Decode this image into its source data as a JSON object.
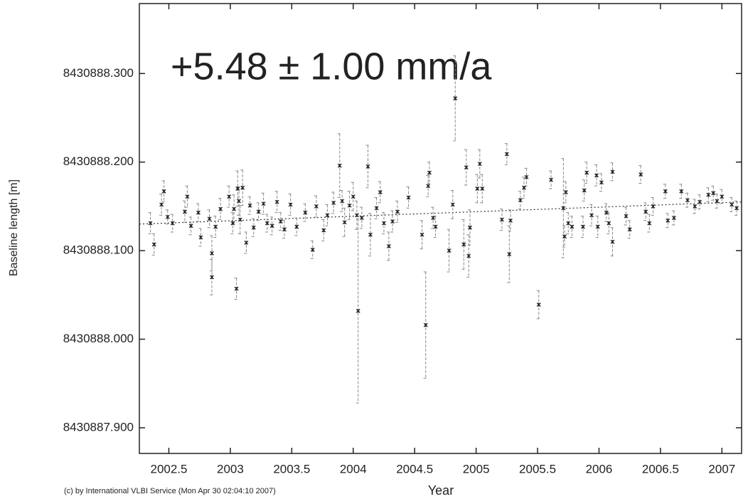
{
  "chart_data": {
    "type": "scatter",
    "annotation": "+5.48 ± 1.00 mm/a",
    "annotation_color": "#118811",
    "xlabel": "Year",
    "ylabel": "Baseline length [m]",
    "footnote": "(c) by International VLBI Service (Mon Apr 30 02:04:10 2007)",
    "xlim": [
      2002.26,
      2007.16
    ],
    "ylim": [
      8430887.871,
      8430888.379
    ],
    "xticks": [
      2002.5,
      2003,
      2003.5,
      2004,
      2004.5,
      2005,
      2005.5,
      2006,
      2006.5,
      2007
    ],
    "yticks": [
      {
        "value": 8430887.9,
        "label": "8430887.900"
      },
      {
        "value": 8430888.0,
        "label": "8430888.000"
      },
      {
        "value": 8430888.1,
        "label": "8430888.100"
      },
      {
        "value": 8430888.2,
        "label": "8430888.200"
      },
      {
        "value": 8430888.3,
        "label": "8430888.300"
      }
    ],
    "grid": false,
    "series": [
      {
        "color": "#222222",
        "error_color": "#8a8a8a",
        "x": [
          2002.35,
          2002.38,
          2002.44,
          2002.46,
          2002.49,
          2002.53,
          2002.63,
          2002.65,
          2002.68,
          2002.74,
          2002.76,
          2002.83,
          2002.85,
          2002.85,
          2002.88,
          2002.92,
          2002.99,
          2003.02,
          2003.03,
          2003.05,
          2003.06,
          2003.07,
          2003.08,
          2003.1,
          2003.13,
          2003.16,
          2003.19,
          2003.23,
          2003.27,
          2003.3,
          2003.34,
          2003.38,
          2003.41,
          2003.44,
          2003.49,
          2003.54,
          2003.61,
          2003.67,
          2003.7,
          2003.76,
          2003.79,
          2003.84,
          2003.89,
          2003.91,
          2003.93,
          2003.97,
          2004.0,
          2004.03,
          2004.04,
          2004.07,
          2004.12,
          2004.14,
          2004.19,
          2004.22,
          2004.25,
          2004.29,
          2004.32,
          2004.36,
          2004.45,
          2004.56,
          2004.59,
          2004.61,
          2004.62,
          2004.65,
          2004.67,
          2004.78,
          2004.81,
          2004.83,
          2004.9,
          2004.92,
          2004.94,
          2004.95,
          2005.01,
          2005.03,
          2005.05,
          2005.21,
          2005.25,
          2005.27,
          2005.28,
          2005.36,
          2005.39,
          2005.41,
          2005.51,
          2005.61,
          2005.71,
          2005.72,
          2005.73,
          2005.75,
          2005.78,
          2005.87,
          2005.88,
          2005.9,
          2005.94,
          2005.98,
          2005.99,
          2006.02,
          2006.06,
          2006.08,
          2006.11,
          2006.11,
          2006.22,
          2006.25,
          2006.34,
          2006.38,
          2006.41,
          2006.44,
          2006.54,
          2006.56,
          2006.61,
          2006.67,
          2006.72,
          2006.78,
          2006.82,
          2006.89,
          2006.93,
          2006.96,
          2007.0,
          2007.08,
          2007.12
        ],
        "values": [
          8430888.131,
          8430888.107,
          8430888.152,
          8430888.167,
          8430888.138,
          8430888.131,
          8430888.144,
          8430888.161,
          8430888.128,
          8430888.143,
          8430888.115,
          8430888.136,
          8430888.097,
          8430888.07,
          8430888.127,
          8430888.147,
          8430888.161,
          8430888.131,
          8430888.147,
          8430888.057,
          8430888.17,
          8430888.156,
          8430888.135,
          8430888.171,
          8430888.109,
          8430888.151,
          8430888.126,
          8430888.144,
          8430888.153,
          8430888.131,
          8430888.128,
          8430888.155,
          8430888.133,
          8430888.124,
          8430888.152,
          8430888.127,
          8430888.143,
          8430888.101,
          8430888.15,
          8430888.123,
          8430888.14,
          8430888.154,
          8430888.196,
          8430888.156,
          8430888.132,
          8430888.151,
          8430888.161,
          8430888.14,
          8430888.032,
          8430888.137,
          8430888.195,
          8430888.118,
          8430888.148,
          8430888.166,
          8430888.131,
          8430888.105,
          8430888.133,
          8430888.144,
          8430888.16,
          8430888.118,
          8430888.016,
          8430888.173,
          8430888.188,
          8430888.137,
          8430888.127,
          8430888.1,
          8430888.152,
          8430888.272,
          8430888.107,
          8430888.194,
          8430888.094,
          8430888.126,
          8430888.17,
          8430888.198,
          8430888.17,
          8430888.135,
          8430888.209,
          8430888.096,
          8430888.134,
          8430888.157,
          8430888.171,
          8430888.183,
          8430888.039,
          8430888.18,
          8430888.148,
          8430888.116,
          8430888.166,
          8430888.131,
          8430888.127,
          8430888.127,
          8430888.168,
          8430888.188,
          8430888.14,
          8430888.185,
          8430888.127,
          8430888.177,
          8430888.143,
          8430888.131,
          8430888.11,
          8430888.189,
          8430888.139,
          8430888.124,
          8430888.186,
          8430888.144,
          8430888.131,
          8430888.15,
          8430888.167,
          8430888.134,
          8430888.137,
          8430888.167,
          8430888.157,
          8430888.15,
          8430888.155,
          8430888.163,
          8430888.165,
          8430888.156,
          8430888.161,
          8430888.152,
          8430888.148
        ],
        "errors": [
          0.012,
          0.012,
          0.012,
          0.012,
          0.008,
          0.01,
          0.012,
          0.012,
          0.01,
          0.01,
          0.01,
          0.01,
          0.02,
          0.02,
          0.012,
          0.012,
          0.012,
          0.012,
          0.016,
          0.012,
          0.02,
          0.016,
          0.016,
          0.02,
          0.012,
          0.01,
          0.01,
          0.01,
          0.012,
          0.01,
          0.01,
          0.012,
          0.01,
          0.01,
          0.012,
          0.01,
          0.01,
          0.01,
          0.012,
          0.012,
          0.012,
          0.012,
          0.036,
          0.012,
          0.016,
          0.016,
          0.016,
          0.016,
          0.104,
          0.012,
          0.024,
          0.024,
          0.012,
          0.012,
          0.012,
          0.016,
          0.012,
          0.012,
          0.012,
          0.016,
          0.06,
          0.012,
          0.012,
          0.012,
          0.012,
          0.024,
          0.016,
          0.048,
          0.028,
          0.02,
          0.024,
          0.02,
          0.016,
          0.016,
          0.016,
          0.012,
          0.012,
          0.032,
          0.012,
          0.01,
          0.012,
          0.01,
          0.016,
          0.01,
          0.056,
          0.012,
          0.012,
          0.012,
          0.012,
          0.012,
          0.012,
          0.012,
          0.012,
          0.012,
          0.012,
          0.01,
          0.01,
          0.012,
          0.016,
          0.01,
          0.01,
          0.01,
          0.01,
          0.01,
          0.01,
          0.01,
          0.008,
          0.008,
          0.008,
          0.008,
          0.008,
          0.008,
          0.008,
          0.008,
          0.008,
          0.008,
          0.008,
          0.008,
          0.008
        ]
      }
    ],
    "fit": {
      "x": [
        2002.26,
        2007.16
      ],
      "values": [
        8430888.13,
        8430888.155
      ],
      "color": "#333333"
    }
  }
}
